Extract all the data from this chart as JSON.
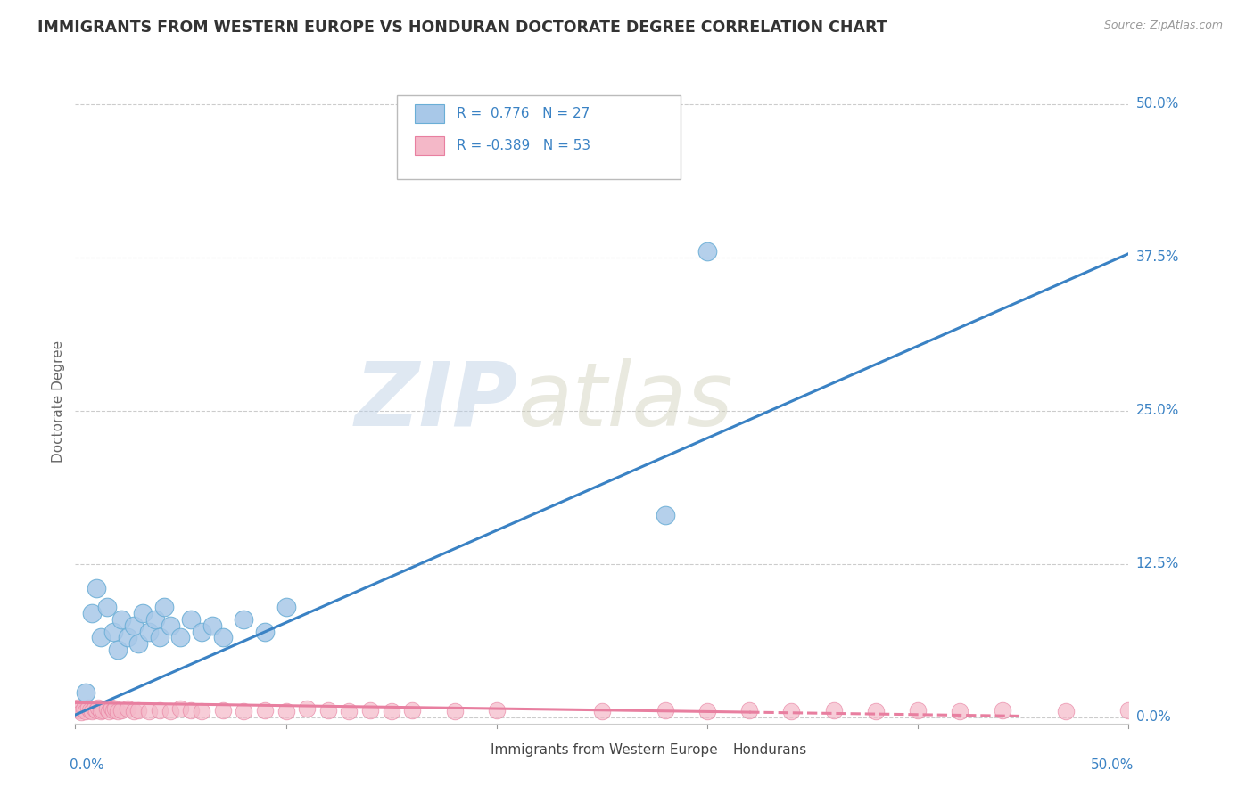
{
  "title": "IMMIGRANTS FROM WESTERN EUROPE VS HONDURAN DOCTORATE DEGREE CORRELATION CHART",
  "source_text": "Source: ZipAtlas.com",
  "ylabel": "Doctorate Degree",
  "yticks_labels": [
    "0.0%",
    "12.5%",
    "25.0%",
    "37.5%",
    "50.0%"
  ],
  "ytick_vals": [
    0.0,
    0.125,
    0.25,
    0.375,
    0.5
  ],
  "xlim": [
    0.0,
    0.5
  ],
  "ylim": [
    -0.005,
    0.52
  ],
  "blue_color": "#a8c8e8",
  "blue_edge_color": "#6aaed6",
  "pink_color": "#f4b8c8",
  "pink_edge_color": "#e87fa0",
  "blue_line_color": "#3a82c4",
  "pink_line_color": "#e87fa0",
  "blue_scatter_x": [
    0.005,
    0.008,
    0.01,
    0.012,
    0.015,
    0.018,
    0.02,
    0.022,
    0.025,
    0.028,
    0.03,
    0.032,
    0.035,
    0.038,
    0.04,
    0.042,
    0.045,
    0.05,
    0.055,
    0.06,
    0.065,
    0.07,
    0.08,
    0.09,
    0.1,
    0.28,
    0.3
  ],
  "blue_scatter_y": [
    0.02,
    0.085,
    0.105,
    0.065,
    0.09,
    0.07,
    0.055,
    0.08,
    0.065,
    0.075,
    0.06,
    0.085,
    0.07,
    0.08,
    0.065,
    0.09,
    0.075,
    0.065,
    0.08,
    0.07,
    0.075,
    0.065,
    0.08,
    0.07,
    0.09,
    0.165,
    0.38
  ],
  "pink_scatter_x": [
    0.001,
    0.002,
    0.003,
    0.004,
    0.005,
    0.006,
    0.007,
    0.008,
    0.009,
    0.01,
    0.011,
    0.012,
    0.013,
    0.015,
    0.016,
    0.017,
    0.018,
    0.019,
    0.02,
    0.022,
    0.025,
    0.028,
    0.03,
    0.035,
    0.04,
    0.045,
    0.05,
    0.055,
    0.06,
    0.07,
    0.08,
    0.09,
    0.1,
    0.11,
    0.12,
    0.13,
    0.14,
    0.15,
    0.16,
    0.18,
    0.2,
    0.25,
    0.28,
    0.3,
    0.32,
    0.34,
    0.36,
    0.38,
    0.4,
    0.42,
    0.44,
    0.47,
    0.5
  ],
  "pink_scatter_y": [
    0.008,
    0.006,
    0.004,
    0.007,
    0.005,
    0.008,
    0.006,
    0.005,
    0.007,
    0.006,
    0.008,
    0.005,
    0.006,
    0.007,
    0.005,
    0.008,
    0.006,
    0.007,
    0.005,
    0.006,
    0.007,
    0.005,
    0.006,
    0.005,
    0.006,
    0.005,
    0.007,
    0.006,
    0.005,
    0.006,
    0.005,
    0.006,
    0.005,
    0.007,
    0.006,
    0.005,
    0.006,
    0.005,
    0.006,
    0.005,
    0.006,
    0.005,
    0.006,
    0.005,
    0.006,
    0.005,
    0.006,
    0.005,
    0.006,
    0.005,
    0.006,
    0.005,
    0.006
  ],
  "blue_trend_x": [
    0.0,
    0.5
  ],
  "blue_trend_y": [
    0.002,
    0.378
  ],
  "pink_trend_x": [
    0.0,
    0.45
  ],
  "pink_trend_y": [
    0.012,
    0.001
  ],
  "pink_trend_solid_end": 0.32,
  "background_color": "#ffffff",
  "grid_color": "#cccccc",
  "grid_style": "--"
}
